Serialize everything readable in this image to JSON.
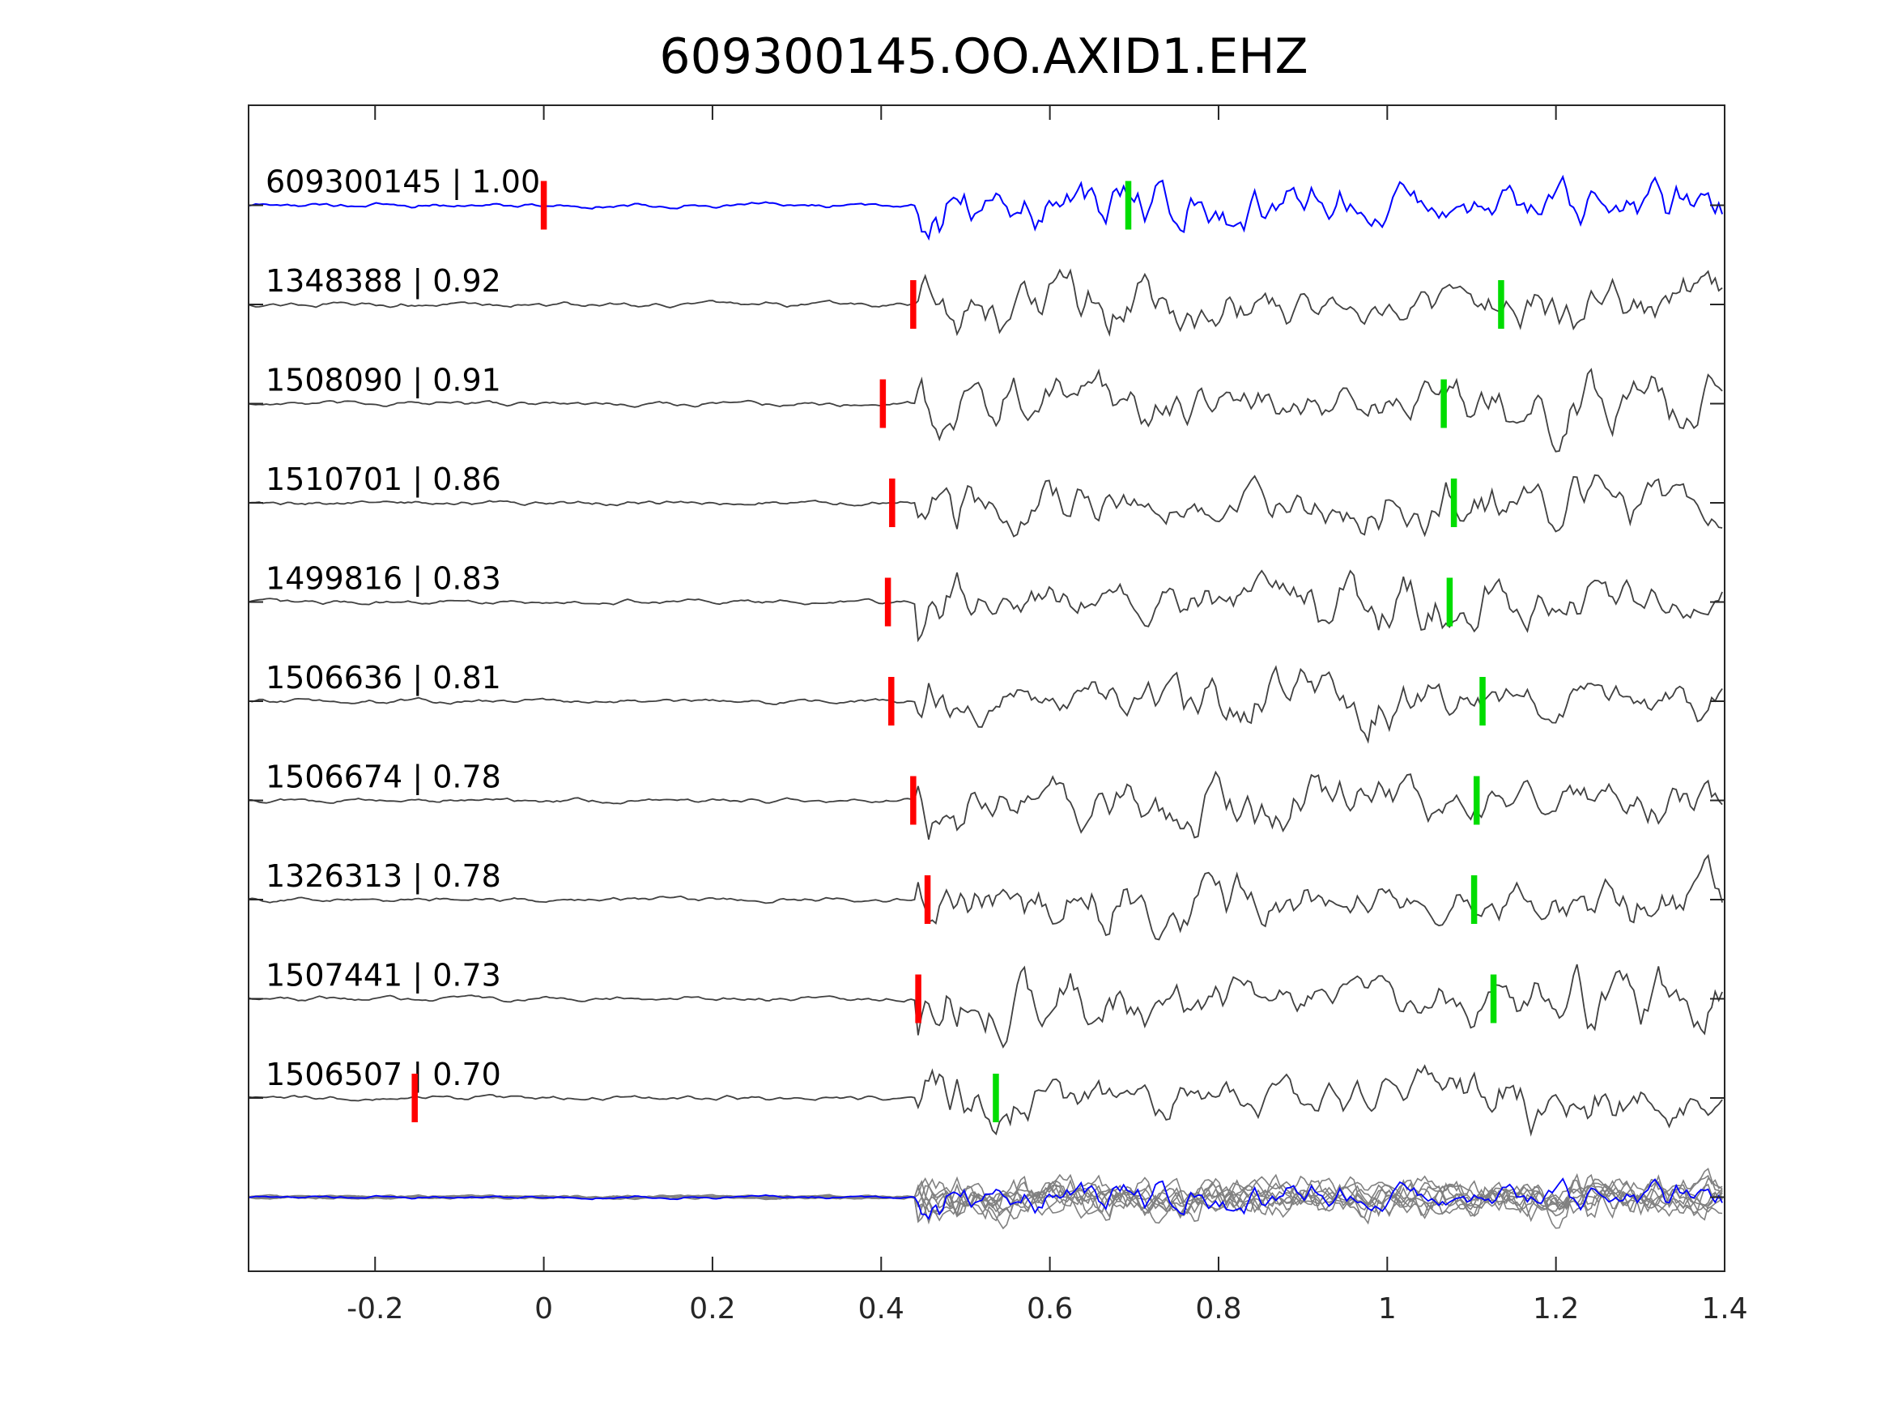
{
  "chart_data": {
    "type": "line",
    "title": "609300145.OO.AXID1.EHZ",
    "xlabel": "",
    "ylabel": "",
    "xlim": [
      -0.35,
      1.4
    ],
    "xticks": [
      -0.2,
      0,
      0.2,
      0.4,
      0.6,
      0.8,
      1,
      1.2,
      1.4
    ],
    "xtick_labels": [
      "-0.2",
      "0",
      "0.2",
      "0.4",
      "0.6",
      "0.8",
      "1",
      "1.2",
      "1.4"
    ],
    "grid": false,
    "colors": {
      "template": "#0000ff",
      "trace": "#404040",
      "stack": "#808080",
      "p_pick": "#ff0000",
      "s_pick": "#00dd00"
    },
    "traces": [
      {
        "label": "609300145 | 1.00",
        "p_pick": 0.0,
        "s_pick": 0.693,
        "template": true
      },
      {
        "label": "1348388 | 0.92",
        "p_pick": 0.438,
        "s_pick": 1.135
      },
      {
        "label": "1508090 | 0.91",
        "p_pick": 0.402,
        "s_pick": 1.067
      },
      {
        "label": "1510701 | 0.86",
        "p_pick": 0.413,
        "s_pick": 1.079
      },
      {
        "label": "1499816 | 0.83",
        "p_pick": 0.408,
        "s_pick": 1.074
      },
      {
        "label": "1506636 | 0.81",
        "p_pick": 0.412,
        "s_pick": 1.113
      },
      {
        "label": "1506674 | 0.78",
        "p_pick": 0.438,
        "s_pick": 1.106
      },
      {
        "label": "1326313 | 0.78",
        "p_pick": 0.455,
        "s_pick": 1.103
      },
      {
        "label": "1507441 | 0.73",
        "p_pick": 0.444,
        "s_pick": 1.126
      },
      {
        "label": "1506507 | 0.70",
        "p_pick": -0.153,
        "s_pick": 0.536
      }
    ]
  }
}
